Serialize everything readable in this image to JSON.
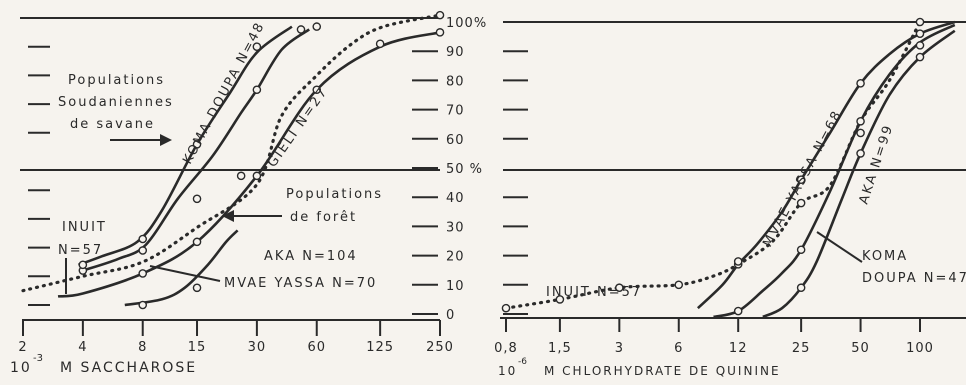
{
  "chart_data": [
    {
      "type": "line",
      "x_scale": "log",
      "xlabel": "M SACCHAROSE",
      "xlabel_prefix": "10",
      "xlabel_exp": "-3",
      "x_ticks": [
        "2",
        "4",
        "8",
        "15",
        "30",
        "60",
        "125",
        "250"
      ],
      "ylim": [
        0,
        100
      ],
      "grid_y": [
        50,
        100
      ],
      "series": [
        {
          "name": "KOMA DOUPA N=48",
          "style": "solid",
          "points": [
            [
              3.8,
              14
            ],
            [
              5,
              17
            ],
            [
              7.5,
              22
            ],
            [
              10,
              33
            ],
            [
              15,
              56
            ],
            [
              22,
              74
            ],
            [
              30,
              88
            ],
            [
              45,
              97
            ]
          ]
        },
        {
          "name": "GIELI N=27",
          "style": "solid",
          "points": [
            [
              4,
              12
            ],
            [
              6,
              16
            ],
            [
              8.3,
              21
            ],
            [
              12,
              37
            ],
            [
              18,
              52
            ],
            [
              25,
              67
            ],
            [
              30,
              75
            ],
            [
              40,
              89
            ],
            [
              55,
              96
            ]
          ]
        },
        {
          "name": "INUIT N=57",
          "style": "dotted",
          "points": [
            [
              2,
              5
            ],
            [
              4,
              10
            ],
            [
              8,
              15
            ],
            [
              15,
              27
            ],
            [
              30,
              42
            ],
            [
              40,
              66
            ],
            [
              60,
              80
            ],
            [
              90,
              91
            ],
            [
              130,
              97
            ],
            [
              250,
              101
            ]
          ]
        },
        {
          "name": "MVAE YASSA N=70",
          "style": "solid",
          "points": [
            [
              3,
              3
            ],
            [
              4,
              4
            ],
            [
              8,
              11
            ],
            [
              15,
              22
            ],
            [
              30,
              45
            ],
            [
              60,
              75
            ],
            [
              125,
              90
            ],
            [
              250,
              95
            ]
          ]
        },
        {
          "name": "AKA N=104",
          "style": "solid",
          "points": [
            [
              6.5,
              0
            ],
            [
              10,
              2
            ],
            [
              13,
              6
            ],
            [
              17,
              14
            ],
            [
              21,
              22
            ],
            [
              24,
              26
            ]
          ]
        }
      ],
      "markers": [
        [
          4,
          12
        ],
        [
          4,
          14
        ],
        [
          8,
          23
        ],
        [
          8,
          19
        ],
        [
          8,
          11
        ],
        [
          8,
          0
        ],
        [
          15,
          56
        ],
        [
          15,
          37
        ],
        [
          15,
          22
        ],
        [
          15,
          6
        ],
        [
          30,
          90
        ],
        [
          30,
          75
        ],
        [
          30,
          45
        ],
        [
          25,
          45
        ],
        [
          60,
          97
        ],
        [
          60,
          75
        ],
        [
          125,
          91
        ],
        [
          250,
          101
        ],
        [
          250,
          95
        ],
        [
          50,
          96
        ]
      ],
      "annotations": {
        "savane": [
          "Populations",
          "Soudaniennes",
          "de savane"
        ],
        "foret": [
          "Populations",
          "de forêt"
        ]
      }
    },
    {
      "type": "line",
      "x_scale": "log",
      "xlabel": "M CHLORHYDRATE DE QUININE",
      "xlabel_prefix": "10",
      "xlabel_exp": "-6",
      "x_ticks": [
        "0,8",
        "1,5",
        "3",
        "6",
        "12",
        "25",
        "50",
        "100"
      ],
      "y_ticks": [
        "0",
        "10",
        "20",
        "30",
        "40",
        "50 %",
        "60",
        "70",
        "80",
        "90",
        "100%"
      ],
      "ylim": [
        0,
        100
      ],
      "grid_y": [
        50,
        100
      ],
      "series": [
        {
          "name": "INUIT N=57",
          "style": "dotted",
          "points": [
            [
              0.8,
              2
            ],
            [
              1.5,
              5
            ],
            [
              3,
              9
            ],
            [
              6,
              10
            ],
            [
              9,
              13
            ],
            [
              12,
              17
            ],
            [
              18,
              25
            ],
            [
              25,
              38
            ],
            [
              35,
              44
            ],
            [
              50,
              66
            ],
            [
              70,
              80
            ],
            [
              100,
              100
            ]
          ]
        },
        {
          "name": "MVAE YASSA N=68",
          "style": "solid",
          "points": [
            [
              7.5,
              2
            ],
            [
              10,
              10
            ],
            [
              12,
              17
            ],
            [
              15,
              24
            ],
            [
              20,
              35
            ],
            [
              25,
              46
            ],
            [
              35,
              62
            ],
            [
              50,
              79
            ],
            [
              70,
              89
            ],
            [
              100,
              96
            ],
            [
              150,
              100
            ]
          ]
        },
        {
          "name": "AKA N=99",
          "style": "solid",
          "points": [
            [
              9,
              -1
            ],
            [
              12,
              1
            ],
            [
              16,
              8
            ],
            [
              20,
              14
            ],
            [
              25,
              22
            ],
            [
              35,
              42
            ],
            [
              50,
              66
            ],
            [
              70,
              82
            ],
            [
              100,
              93
            ],
            [
              150,
              99
            ]
          ]
        },
        {
          "name": "KOMA DOUPA N=47",
          "style": "solid",
          "points": [
            [
              16,
              -1
            ],
            [
              20,
              2
            ],
            [
              25,
              9
            ],
            [
              30,
              18
            ],
            [
              40,
              39
            ],
            [
              50,
              55
            ],
            [
              70,
              75
            ],
            [
              100,
              88
            ],
            [
              150,
              97
            ]
          ]
        }
      ],
      "markers": [
        [
          0.8,
          2
        ],
        [
          1.5,
          5
        ],
        [
          3,
          9
        ],
        [
          6,
          10
        ],
        [
          12,
          17
        ],
        [
          12,
          18
        ],
        [
          12,
          1
        ],
        [
          25,
          46
        ],
        [
          25,
          38
        ],
        [
          25,
          22
        ],
        [
          25,
          9
        ],
        [
          50,
          79
        ],
        [
          50,
          66
        ],
        [
          50,
          62
        ],
        [
          50,
          55
        ],
        [
          100,
          100
        ],
        [
          100,
          96
        ],
        [
          100,
          92
        ],
        [
          100,
          88
        ]
      ],
      "labels": {
        "mvae": "MVAE YASSA N=68",
        "aka": "AKA N=99",
        "koma": [
          "KOMA",
          "DOUPA N=47"
        ],
        "inuit": "INUIT N=57"
      }
    }
  ],
  "left_labels": {
    "koma": "KOMA DOUPA N=48",
    "gieli": "GIELI N=27",
    "inuit": [
      "INUIT",
      "N=57"
    ],
    "aka": "AKA N=104",
    "mvae": "MVAE YASSA N=70"
  }
}
